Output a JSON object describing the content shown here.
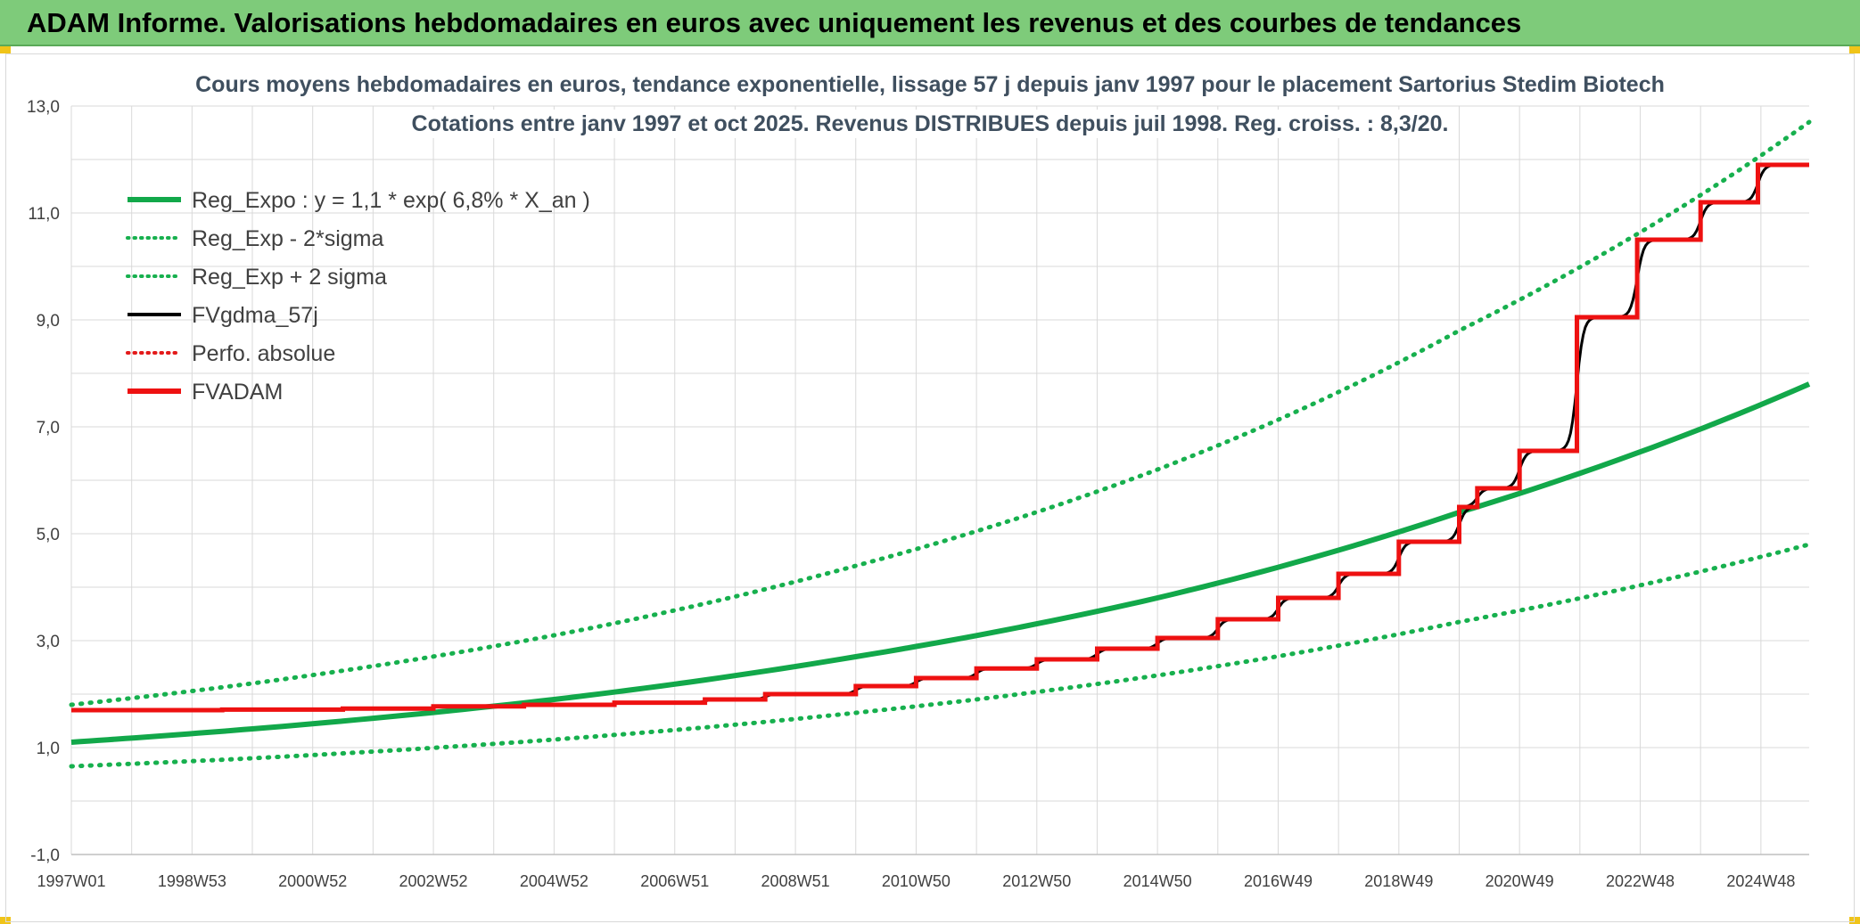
{
  "header": {
    "title": "ADAM Informe. Valorisations hebdomadaires en euros avec uniquement les revenus et des courbes de tendances"
  },
  "colors": {
    "banner": "#7ecb7a",
    "reg_green": "#12a84a",
    "band_green": "#17b04e",
    "fvgdma_black": "#000000",
    "fvadam_red": "#ee1111",
    "perfo_red": "#e31a1a",
    "grid": "#d9d9d9"
  },
  "chart_data": {
    "type": "line",
    "title_lines": [
      "Cours moyens hebdomadaires en euros, tendance exponentielle, lissage 57 j depuis janv 1997 pour le placement Sartorius Stedim Biotech",
      "Cotations entre janv 1997 et oct 2025. Revenus DISTRIBUES depuis juil 1998. Reg. croiss. : 8,3/20."
    ],
    "y_ticks": [
      "13,0",
      "11,0",
      "9,0",
      "7,0",
      "5,0",
      "3,0",
      "1,0",
      "-1,0"
    ],
    "y_tick_values": [
      13,
      11,
      9,
      7,
      5,
      3,
      1,
      -1
    ],
    "ylim": [
      -1,
      13
    ],
    "xlim": [
      1997.0,
      2025.8
    ],
    "x_ticks": [
      "1997W01",
      "1998W53",
      "2000W52",
      "2002W52",
      "2004W52",
      "2006W51",
      "2008W51",
      "2010W50",
      "2012W50",
      "2014W50",
      "2016W49",
      "2018W49",
      "2020W49",
      "2022W48",
      "2024W48"
    ],
    "x_tick_values": [
      1997.0,
      1999.0,
      2001.0,
      2003.0,
      2005.0,
      2007.0,
      2009.0,
      2011.0,
      2013.0,
      2015.0,
      2017.0,
      2019.0,
      2021.0,
      2023.0,
      2025.0
    ],
    "legend": [
      {
        "key": "reg",
        "label": "Reg_Expo : y = 1,1 * exp( 6,8% *  X_an )",
        "style": "solid-thick",
        "color": "#12a84a"
      },
      {
        "key": "low",
        "label": "Reg_Exp - 2*sigma",
        "style": "dotted",
        "color": "#17b04e"
      },
      {
        "key": "high",
        "label": "Reg_Exp + 2 sigma",
        "style": "dotted",
        "color": "#17b04e"
      },
      {
        "key": "fvgdma",
        "label": "FVgdma_57j",
        "style": "solid",
        "color": "#000000"
      },
      {
        "key": "perfo",
        "label": "Perfo. absolue",
        "style": "dotted",
        "color": "#e31a1a"
      },
      {
        "key": "fvadam",
        "label": "FVADAM",
        "style": "solid-thick",
        "color": "#ee1111"
      }
    ],
    "series": [
      {
        "name": "Reg_Expo",
        "a": 1.1,
        "r": 0.068,
        "x": [
          1997.0,
          2000.0,
          2005.0,
          2010.0,
          2015.0,
          2020.0,
          2025.8
        ],
        "values": [
          1.1,
          1.35,
          1.9,
          2.7,
          3.8,
          5.4,
          7.8
        ]
      },
      {
        "name": "Reg_Exp - 2*sigma",
        "x": [
          1997.0,
          2000.0,
          2005.0,
          2010.0,
          2015.0,
          2020.0,
          2025.8
        ],
        "values": [
          0.65,
          0.8,
          1.15,
          1.65,
          2.35,
          3.35,
          4.8
        ]
      },
      {
        "name": "Reg_Exp + 2 sigma",
        "x": [
          1997.0,
          2000.0,
          2005.0,
          2010.0,
          2015.0,
          2020.0,
          2025.8
        ],
        "values": [
          1.8,
          2.2,
          3.1,
          4.4,
          6.2,
          8.8,
          12.7
        ]
      },
      {
        "name": "FVADAM",
        "steps": [
          {
            "x": 1997.0,
            "y": 1.7
          },
          {
            "x": 1999.5,
            "y": 1.71
          },
          {
            "x": 2001.5,
            "y": 1.73
          },
          {
            "x": 2003.0,
            "y": 1.77
          },
          {
            "x": 2004.5,
            "y": 1.8
          },
          {
            "x": 2006.0,
            "y": 1.84
          },
          {
            "x": 2007.5,
            "y": 1.9
          },
          {
            "x": 2008.5,
            "y": 2.0
          },
          {
            "x": 2010.0,
            "y": 2.15
          },
          {
            "x": 2011.0,
            "y": 2.3
          },
          {
            "x": 2012.0,
            "y": 2.48
          },
          {
            "x": 2013.0,
            "y": 2.65
          },
          {
            "x": 2014.0,
            "y": 2.85
          },
          {
            "x": 2015.0,
            "y": 3.05
          },
          {
            "x": 2016.0,
            "y": 3.4
          },
          {
            "x": 2017.0,
            "y": 3.8
          },
          {
            "x": 2018.0,
            "y": 4.25
          },
          {
            "x": 2019.0,
            "y": 4.85
          },
          {
            "x": 2020.0,
            "y": 5.5
          },
          {
            "x": 2020.3,
            "y": 5.85
          },
          {
            "x": 2021.0,
            "y": 6.55
          },
          {
            "x": 2021.95,
            "y": 9.05
          },
          {
            "x": 2022.95,
            "y": 10.5
          },
          {
            "x": 2024.0,
            "y": 11.2
          },
          {
            "x": 2024.95,
            "y": 11.9
          }
        ],
        "end_x": 2025.8
      }
    ]
  }
}
